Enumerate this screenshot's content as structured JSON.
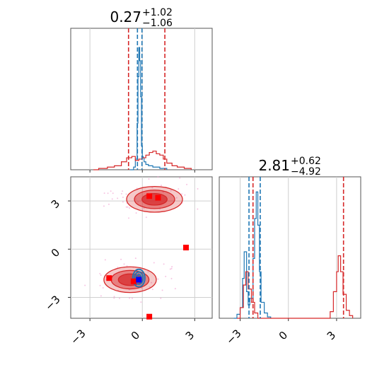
{
  "chart_data": [
    {
      "type": "histogram",
      "panel": "marginal-param-1",
      "title": {
        "median": "0.27",
        "plus": "+1.02",
        "minus": "−1.06"
      },
      "xlim": [
        -4.1,
        4.0
      ],
      "grid": true,
      "series": [
        {
          "color": "#1f77b4",
          "bins": [
            [
              -0.7,
              0
            ],
            [
              -0.5,
              0.02
            ],
            [
              -0.4,
              0.08
            ],
            [
              -0.3,
              0.35
            ],
            [
              -0.25,
              0.7
            ],
            [
              -0.2,
              0.92
            ],
            [
              -0.15,
              0.82
            ],
            [
              -0.1,
              0.55
            ],
            [
              -0.05,
              0.18
            ],
            [
              0,
              0.1
            ],
            [
              0.05,
              0.09
            ],
            [
              0.1,
              0.06
            ],
            [
              0.2,
              0.04
            ],
            [
              0.35,
              0.03
            ],
            [
              0.6,
              0.02
            ],
            [
              1.0,
              0.01
            ],
            [
              1.4,
              0
            ]
          ],
          "lines": [
            -0.28,
            -0.02
          ]
        },
        {
          "color": "#d62728",
          "bins": [
            [
              -2.8,
              0
            ],
            [
              -2.5,
              0.01
            ],
            [
              -2.0,
              0.02
            ],
            [
              -1.6,
              0.03
            ],
            [
              -1.2,
              0.06
            ],
            [
              -0.9,
              0.09
            ],
            [
              -0.6,
              0.1
            ],
            [
              -0.4,
              0.07
            ],
            [
              -0.2,
              0.08
            ],
            [
              0,
              0.09
            ],
            [
              0.2,
              0.11
            ],
            [
              0.4,
              0.13
            ],
            [
              0.6,
              0.14
            ],
            [
              0.8,
              0.12
            ],
            [
              1.0,
              0.11
            ],
            [
              1.2,
              0.08
            ],
            [
              1.4,
              0.05
            ],
            [
              1.7,
              0.03
            ],
            [
              2.0,
              0.02
            ],
            [
              2.4,
              0.01
            ],
            [
              2.8,
              0
            ]
          ],
          "lines": [
            -0.79,
            1.29
          ]
        }
      ]
    },
    {
      "type": "contour",
      "panel": "joint",
      "xlim": [
        -4.1,
        4.0
      ],
      "ylim": [
        -4.3,
        4.5
      ],
      "xticks": [
        "−3",
        "0",
        "3"
      ],
      "yticks": [
        "3",
        "0",
        "−3"
      ],
      "grid": true,
      "clusters": [
        {
          "cx": 0.7,
          "cy": 3.1,
          "rx": 1.6,
          "ry": 0.8,
          "color": "#d62728"
        },
        {
          "cx": -0.7,
          "cy": -1.9,
          "rx": 1.5,
          "ry": 0.8,
          "color": "#d62728"
        },
        {
          "cx": -0.2,
          "cy": -1.8,
          "rx": 0.35,
          "ry": 0.55,
          "color": "#1f77b4"
        }
      ],
      "markers": [
        {
          "x": 0.4,
          "y": 3.3,
          "color": "#ff0000"
        },
        {
          "x": 0.9,
          "y": 3.2,
          "color": "#ff0000"
        },
        {
          "x": 2.5,
          "y": 0.1,
          "color": "#ff0000"
        },
        {
          "x": -1.9,
          "y": -1.8,
          "color": "#ff0000"
        },
        {
          "x": -0.5,
          "y": -2.0,
          "color": "#ff0000"
        },
        {
          "x": 0.4,
          "y": -4.2,
          "color": "#ff0000"
        },
        {
          "x": -0.2,
          "y": -1.9,
          "color": "#0000ff"
        }
      ]
    },
    {
      "type": "histogram",
      "panel": "marginal-param-2",
      "title": {
        "median": "2.81",
        "plus": "+0.62",
        "minus": "−4.92"
      },
      "xlim": [
        -4.3,
        4.5
      ],
      "xticks": [
        "−3",
        "0",
        "3"
      ],
      "grid": true,
      "series": [
        {
          "color": "#1f77b4",
          "bins": [
            [
              -3.4,
              0
            ],
            [
              -3.2,
              0.03
            ],
            [
              -3.0,
              0.08
            ],
            [
              -2.85,
              0.3
            ],
            [
              -2.75,
              0.5
            ],
            [
              -2.6,
              0.2
            ],
            [
              -2.5,
              0.1
            ],
            [
              -2.4,
              0.15
            ],
            [
              -2.2,
              0.45
            ],
            [
              -2.1,
              0.75
            ],
            [
              -2.0,
              0.95
            ],
            [
              -1.9,
              0.7
            ],
            [
              -1.8,
              0.35
            ],
            [
              -1.7,
              0.12
            ],
            [
              -1.5,
              0.04
            ],
            [
              -1.3,
              0.01
            ],
            [
              -1.1,
              0
            ]
          ],
          "lines": [
            -2.45,
            -1.75
          ]
        },
        {
          "color": "#d62728",
          "bins": [
            [
              -3.2,
              0
            ],
            [
              -3.0,
              0.08
            ],
            [
              -2.8,
              0.25
            ],
            [
              -2.65,
              0.35
            ],
            [
              -2.5,
              0.22
            ],
            [
              -2.3,
              0.12
            ],
            [
              -2.1,
              0.04
            ],
            [
              -1.9,
              0
            ],
            [
              2.4,
              0
            ],
            [
              2.6,
              0.05
            ],
            [
              2.8,
              0.2
            ],
            [
              3.0,
              0.35
            ],
            [
              3.1,
              0.47
            ],
            [
              3.25,
              0.35
            ],
            [
              3.4,
              0.18
            ],
            [
              3.6,
              0.06
            ],
            [
              3.8,
              0.02
            ],
            [
              4.0,
              0
            ]
          ],
          "lines": [
            -2.2,
            3.43
          ]
        }
      ]
    }
  ]
}
